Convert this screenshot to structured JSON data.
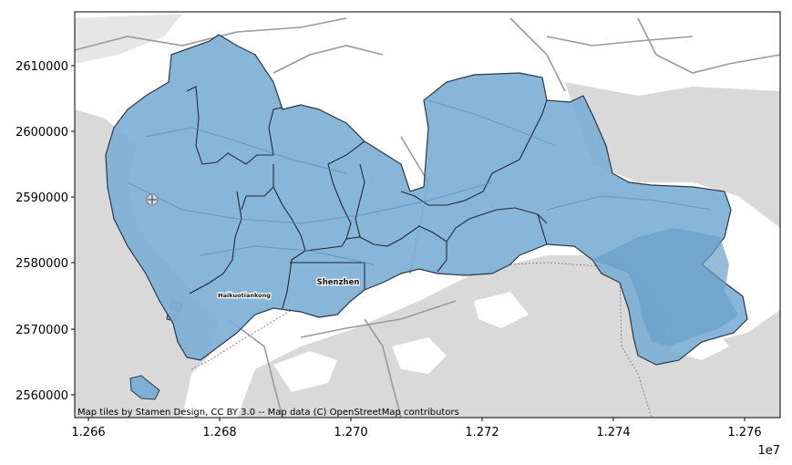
{
  "map": {
    "x_ticks": [
      "1.266",
      "1.268",
      "1.270",
      "1.272",
      "1.274",
      "1.276"
    ],
    "y_ticks": [
      "2560000",
      "2570000",
      "2580000",
      "2590000",
      "2600000",
      "2610000"
    ],
    "x_offset_label": "1e7",
    "city_label": "Shenzhen",
    "district_label": "Haikuotiankong",
    "attribution": "Map tiles by Stamen Design, CC BY 3.0 -- Map data (C) OpenStreetMap contributors",
    "colors": {
      "region_fill": "#7eb0d6",
      "region_edge": "#1f2937",
      "land_gray": "#d9d9d9",
      "road": "#9a9a9a"
    }
  }
}
